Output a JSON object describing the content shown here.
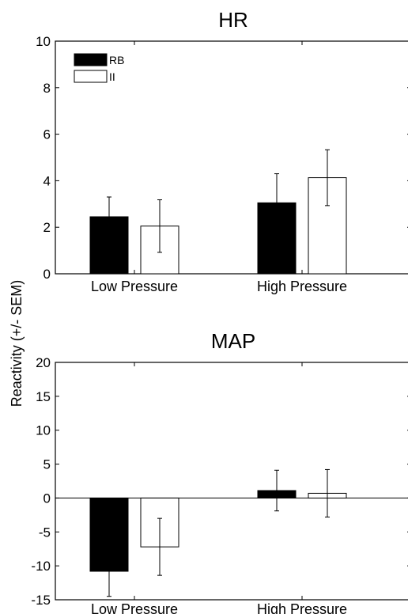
{
  "ylabel": "Reactivity (+/- SEM)",
  "colors": {
    "RB": "#000000",
    "II": "#ffffff",
    "axis": "#000000"
  },
  "legend": {
    "entries": [
      "RB",
      "II"
    ],
    "placement": "top-left"
  },
  "chart_data": [
    {
      "type": "bar",
      "title": "HR",
      "xlabel": "",
      "ylabel": "Reactivity (+/- SEM)",
      "categories": [
        "Low Pressure",
        "High Pressure"
      ],
      "series": [
        {
          "name": "RB",
          "values": [
            2.45,
            3.05
          ],
          "sem": [
            0.85,
            1.25
          ]
        },
        {
          "name": "II",
          "values": [
            2.05,
            4.13
          ],
          "sem": [
            1.13,
            1.2
          ]
        }
      ],
      "ylim": [
        0,
        10
      ],
      "yticks": [
        0,
        2,
        4,
        6,
        8,
        10
      ],
      "grid": false,
      "legend": "top-left"
    },
    {
      "type": "bar",
      "title": "MAP",
      "xlabel": "",
      "ylabel": "Reactivity (+/- SEM)",
      "categories": [
        "Low Pressure",
        "High Pressure"
      ],
      "series": [
        {
          "name": "RB",
          "values": [
            -10.8,
            1.1
          ],
          "sem": [
            3.7,
            3.0
          ]
        },
        {
          "name": "II",
          "values": [
            -7.2,
            0.7
          ],
          "sem": [
            4.2,
            3.5
          ]
        }
      ],
      "ylim": [
        -15,
        20
      ],
      "yticks": [
        -15,
        -10,
        -5,
        0,
        5,
        10,
        15,
        20
      ],
      "grid": false,
      "legend": "none"
    }
  ]
}
